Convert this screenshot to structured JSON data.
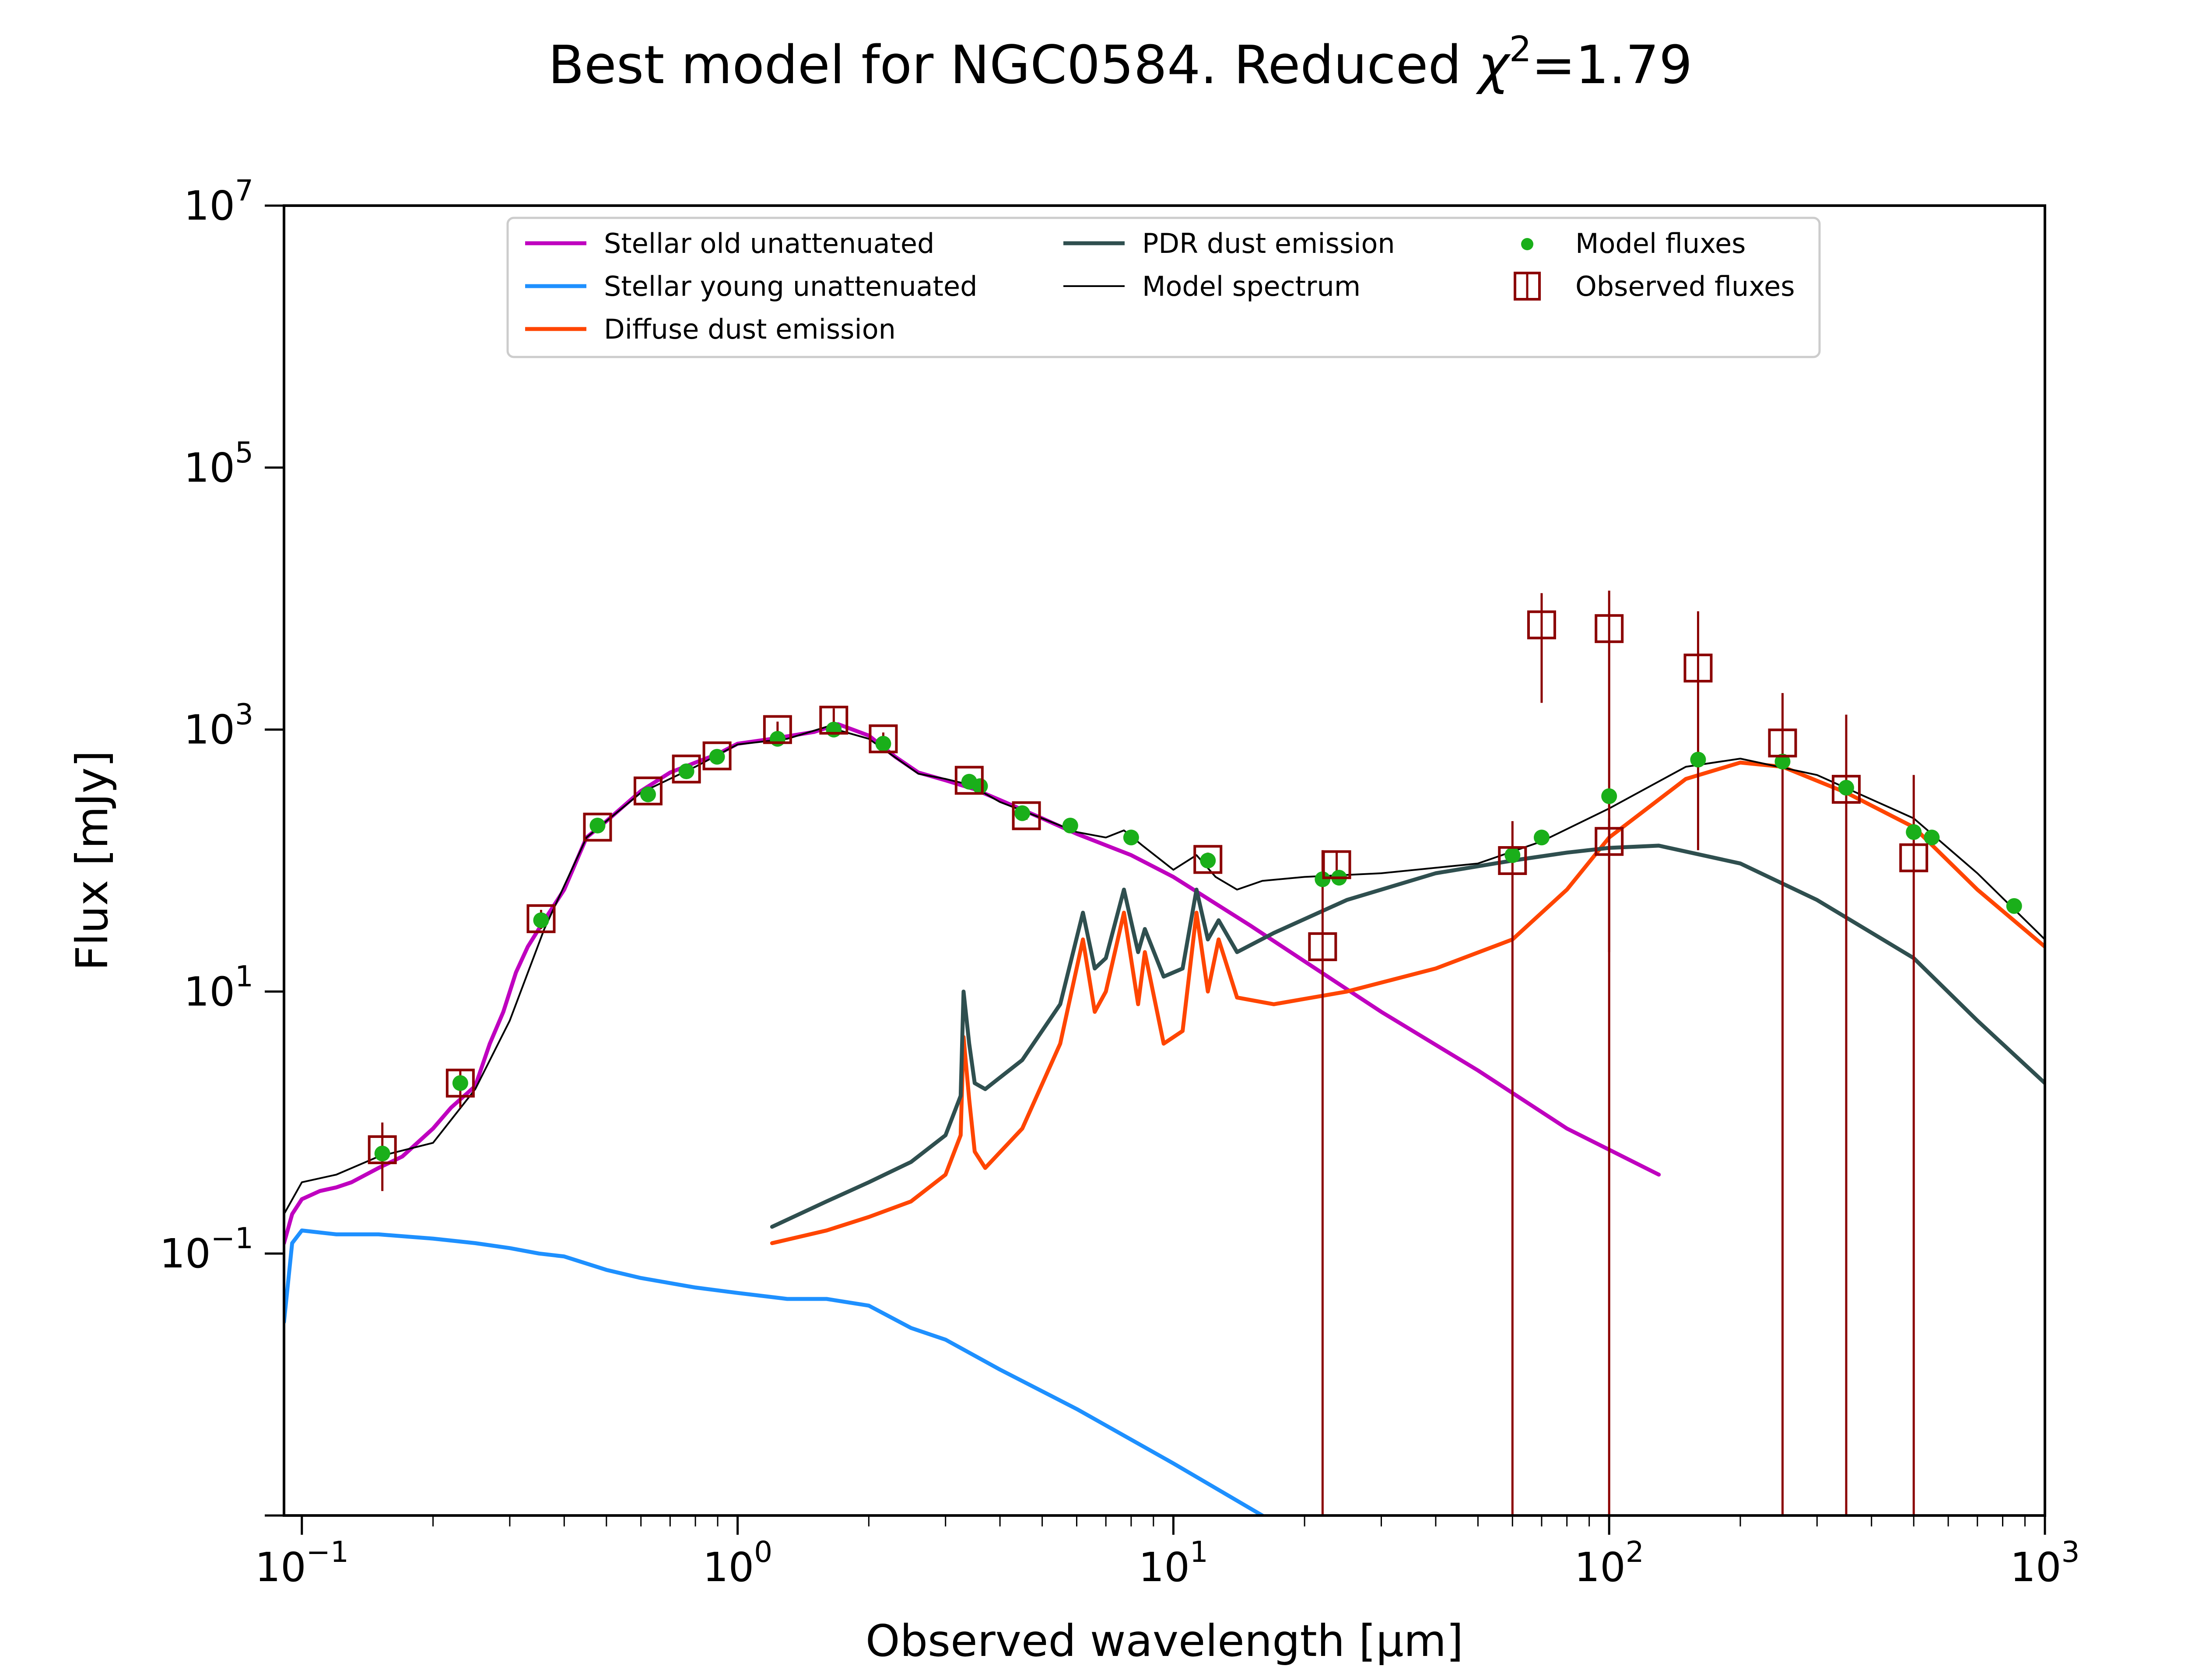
{
  "chart_data": {
    "type": "line",
    "title": "Best model for NGC0584. Reduced χ²=1.79",
    "title_parts": {
      "prefix": "Best model for NGC0584. Reduced ",
      "chi": "χ",
      "sup": "2",
      "suffix": "=1.79"
    },
    "xlabel": "Observed wavelength [μm]",
    "ylabel": "Flux [mJy]",
    "xscale": "log",
    "yscale": "log",
    "xlim": [
      0.091,
      1000
    ],
    "ylim": [
      0.001,
      10000000
    ],
    "x_ticks": [
      {
        "value": 0.1,
        "base": "10",
        "exp": "−1"
      },
      {
        "value": 1,
        "base": "10",
        "exp": "0"
      },
      {
        "value": 10,
        "base": "10",
        "exp": "1"
      },
      {
        "value": 100,
        "base": "10",
        "exp": "2"
      },
      {
        "value": 1000,
        "base": "10",
        "exp": "3"
      }
    ],
    "y_ticks": [
      {
        "value": 0.1,
        "base": "10",
        "exp": "−1"
      },
      {
        "value": 10,
        "base": "10",
        "exp": "1"
      },
      {
        "value": 1000,
        "base": "10",
        "exp": "3"
      },
      {
        "value": 100000,
        "base": "10",
        "exp": "5"
      },
      {
        "value": 10000000,
        "base": "10",
        "exp": "7"
      }
    ],
    "grid": false,
    "legend_position": "top-center",
    "legend": [
      {
        "label": "Stellar old unattenuated",
        "type": "line",
        "color": "#BF00BF"
      },
      {
        "label": "Stellar young unattenuated",
        "type": "line",
        "color": "#1E90FF"
      },
      {
        "label": "Diffuse dust emission",
        "type": "line",
        "color": "#FF4500"
      },
      {
        "label": "PDR dust emission",
        "type": "line",
        "color": "#2F4F4F"
      },
      {
        "label": "Model spectrum",
        "type": "thin-line",
        "color": "#000000"
      },
      {
        "label": "Model fluxes",
        "type": "dot",
        "color": "#1AAF1A"
      },
      {
        "label": "Observed fluxes",
        "type": "square",
        "color": "#8B0000"
      }
    ],
    "series": [
      {
        "name": "Stellar old unattenuated",
        "color": "#BF00BF",
        "x": [
          0.091,
          0.095,
          0.1,
          0.11,
          0.12,
          0.13,
          0.15,
          0.17,
          0.2,
          0.22,
          0.25,
          0.27,
          0.29,
          0.31,
          0.33,
          0.36,
          0.4,
          0.45,
          0.5,
          0.6,
          0.7,
          0.8,
          0.9,
          1.0,
          1.2,
          1.5,
          1.7,
          2.0,
          2.3,
          2.6,
          3.0,
          3.5,
          4.0,
          5.0,
          6.0,
          8.0,
          10,
          15,
          20,
          30,
          50,
          80,
          130
        ],
        "y": [
          0.12,
          0.2,
          0.26,
          0.3,
          0.32,
          0.35,
          0.45,
          0.55,
          0.9,
          1.3,
          1.9,
          4,
          7,
          14,
          22,
          35,
          60,
          150,
          200,
          340,
          470,
          560,
          650,
          780,
          850,
          960,
          1100,
          900,
          620,
          470,
          410,
          350,
          290,
          210,
          160,
          110,
          75,
          32,
          17,
          7,
          2.5,
          0.9,
          0.4
        ]
      },
      {
        "name": "Stellar young unattenuated",
        "color": "#1E90FF",
        "x": [
          0.091,
          0.095,
          0.1,
          0.12,
          0.15,
          0.2,
          0.25,
          0.3,
          0.35,
          0.4,
          0.5,
          0.6,
          0.8,
          1.0,
          1.3,
          1.6,
          2.0,
          2.5,
          3.0,
          4.0,
          6.0,
          10,
          16
        ],
        "y": [
          0.03,
          0.12,
          0.15,
          0.14,
          0.14,
          0.13,
          0.12,
          0.11,
          0.1,
          0.095,
          0.075,
          0.065,
          0.055,
          0.05,
          0.045,
          0.045,
          0.04,
          0.027,
          0.022,
          0.013,
          0.0065,
          0.0025,
          0.001
        ]
      },
      {
        "name": "Diffuse dust emission",
        "color": "#FF4500",
        "x": [
          1.2,
          1.6,
          2.0,
          2.5,
          3.0,
          3.25,
          3.3,
          3.4,
          3.5,
          3.7,
          4.5,
          5.5,
          6.2,
          6.6,
          7.0,
          7.7,
          8.3,
          8.6,
          9.5,
          10.5,
          11.3,
          12.0,
          12.7,
          14,
          17,
          25,
          40,
          60,
          80,
          100,
          150,
          200,
          250,
          350,
          500,
          700,
          1000
        ],
        "y": [
          0.12,
          0.15,
          0.19,
          0.25,
          0.4,
          0.8,
          4.5,
          1.5,
          0.6,
          0.45,
          0.9,
          4,
          25,
          7,
          10,
          40,
          8,
          20,
          4,
          5,
          40,
          10,
          25,
          9,
          8,
          10,
          15,
          25,
          60,
          150,
          420,
          560,
          520,
          330,
          180,
          60,
          22
        ]
      },
      {
        "name": "PDR dust emission",
        "color": "#2F4F4F",
        "x": [
          1.2,
          1.6,
          2.0,
          2.5,
          3.0,
          3.25,
          3.3,
          3.4,
          3.5,
          3.7,
          4.5,
          5.5,
          6.2,
          6.6,
          7.0,
          7.7,
          8.3,
          8.6,
          9.5,
          10.5,
          11.3,
          12.0,
          12.7,
          14,
          17,
          25,
          40,
          60,
          80,
          100,
          130,
          200,
          300,
          500,
          700,
          1000
        ],
        "y": [
          0.16,
          0.25,
          0.35,
          0.5,
          0.8,
          1.6,
          10,
          4,
          2,
          1.8,
          3,
          8,
          40,
          15,
          18,
          60,
          20,
          30,
          13,
          15,
          60,
          25,
          35,
          20,
          28,
          50,
          80,
          100,
          115,
          125,
          130,
          95,
          50,
          18,
          6,
          2
        ]
      },
      {
        "name": "Model spectrum",
        "color": "#000000",
        "x": [
          0.091,
          0.1,
          0.12,
          0.15,
          0.2,
          0.25,
          0.3,
          0.36,
          0.45,
          0.6,
          0.8,
          1.0,
          1.3,
          1.6,
          2.0,
          2.6,
          3.0,
          3.4,
          4.0,
          5.0,
          6.0,
          7.0,
          7.7,
          8.5,
          10,
          11.3,
          12.5,
          14,
          16,
          20,
          30,
          50,
          70,
          100,
          150,
          200,
          300,
          500,
          700,
          1000
        ],
        "y": [
          0.2,
          0.35,
          0.4,
          0.55,
          0.7,
          1.8,
          6,
          30,
          150,
          330,
          520,
          770,
          850,
          1050,
          850,
          460,
          420,
          380,
          280,
          210,
          165,
          150,
          170,
          130,
          85,
          110,
          75,
          60,
          70,
          75,
          80,
          95,
          140,
          250,
          520,
          600,
          450,
          210,
          80,
          25
        ]
      }
    ],
    "model_fluxes": {
      "x": [
        0.153,
        0.231,
        0.354,
        0.477,
        0.623,
        0.763,
        0.897,
        1.235,
        1.662,
        2.159,
        3.4,
        3.6,
        4.5,
        5.8,
        8.0,
        12.0,
        22.0,
        24.0,
        60.0,
        70.0,
        100.0,
        160.0,
        250.0,
        350.0,
        500.0,
        550.0,
        850.0
      ],
      "y": [
        0.58,
        2.0,
        35,
        185,
        320,
        480,
        620,
        850,
        1000,
        780,
        400,
        370,
        230,
        185,
        150,
        100,
        72,
        74,
        110,
        150,
        310,
        590,
        570,
        360,
        165,
        150,
        45
      ]
    },
    "observed_fluxes": {
      "x": [
        0.153,
        0.231,
        0.354,
        0.477,
        0.623,
        0.763,
        0.897,
        1.235,
        1.662,
        2.159,
        3.4,
        4.6,
        12.0,
        22.0,
        23.7,
        60.0,
        70.0,
        100.0,
        100.0,
        160.0,
        250.0,
        350.0,
        500.0
      ],
      "y": [
        0.62,
        2.0,
        36,
        180,
        340,
        500,
        630,
        1000,
        1180,
        850,
        410,
        220,
        102,
        22,
        93,
        100,
        6300,
        5900,
        140,
        2950,
        790,
        350,
        105
      ],
      "err_low": [
        0.3,
        1.3,
        30,
        170,
        325,
        485,
        615,
        850,
        900,
        750,
        380,
        205,
        90,
        0.001,
        70,
        0.001,
        1600,
        20,
        0.001,
        120,
        0.001,
        0.001,
        0.001
      ],
      "err_high": [
        1.0,
        2.5,
        42,
        190,
        355,
        515,
        645,
        1150,
        1450,
        950,
        440,
        235,
        115,
        120,
        115,
        200,
        11000,
        11500,
        210,
        8000,
        1900,
        1300,
        450
      ]
    }
  }
}
